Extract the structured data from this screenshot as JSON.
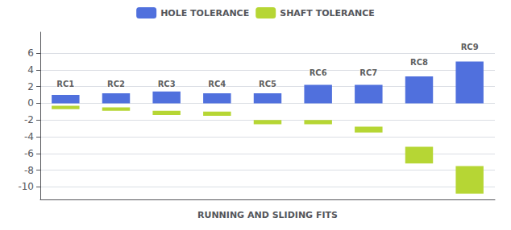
{
  "chart_data": {
    "type": "bar",
    "x_label": "RUNNING AND SLIDING FITS",
    "categories": [
      "RC1",
      "RC2",
      "RC3",
      "RC4",
      "RC5",
      "RC6",
      "RC7",
      "RC8",
      "RC9"
    ],
    "series": [
      {
        "name": "HOLE TOLERANCE",
        "values": [
          [
            0,
            1.0
          ],
          [
            0,
            1.2
          ],
          [
            0,
            1.4
          ],
          [
            0,
            1.2
          ],
          [
            0,
            1.2
          ],
          [
            0,
            2.2
          ],
          [
            0,
            2.2
          ],
          [
            0,
            3.2
          ],
          [
            0,
            5.0
          ]
        ]
      },
      {
        "name": "SHAFT TOLERANCE",
        "values": [
          [
            -0.7,
            -0.3
          ],
          [
            -0.9,
            -0.5
          ],
          [
            -1.4,
            -0.9
          ],
          [
            -1.5,
            -1.0
          ],
          [
            -2.5,
            -2.0
          ],
          [
            -2.5,
            -2.0
          ],
          [
            -3.5,
            -2.8
          ],
          [
            -7.2,
            -5.2
          ],
          [
            -10.8,
            -7.5
          ]
        ]
      }
    ],
    "annotations": [
      {
        "text": "RC1",
        "x": "RC1",
        "y": 1.8
      },
      {
        "text": "RC2",
        "x": "RC2",
        "y": 1.8
      },
      {
        "text": "RC3",
        "x": "RC3",
        "y": 1.8
      },
      {
        "text": "RC4",
        "x": "RC4",
        "y": 1.8
      },
      {
        "text": "RC5",
        "x": "RC5",
        "y": 1.8
      },
      {
        "text": "RC6",
        "x": "RC6",
        "y": 3.2
      },
      {
        "text": "RC7",
        "x": "RC7",
        "y": 3.2
      },
      {
        "text": "RC8",
        "x": "RC8",
        "y": 4.4
      },
      {
        "text": "RC9",
        "x": "RC9",
        "y": 6.2
      }
    ],
    "ylim": [
      -11.5,
      8.5
    ],
    "yticks": [
      -10,
      -8,
      -6,
      -4,
      -2,
      0,
      2,
      4,
      6
    ],
    "grid": true,
    "legend": "top",
    "tick_labels": "y"
  }
}
